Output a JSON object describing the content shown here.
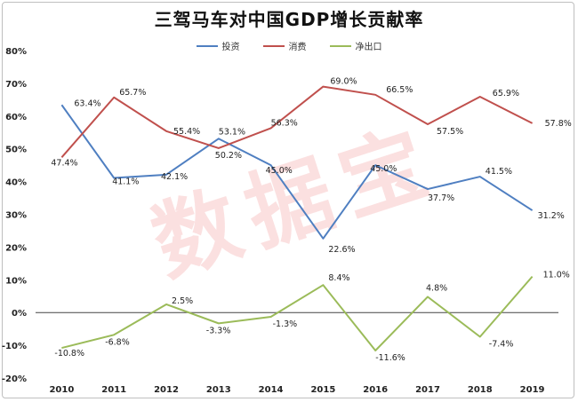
{
  "title": "三驾马车对中国GDP增长贡献率",
  "watermark": "数据宝",
  "chart_data": {
    "type": "line",
    "title": "三驾马车对中国GDP增长贡献率",
    "categories": [
      "2010",
      "2011",
      "2012",
      "2013",
      "2014",
      "2015",
      "2016",
      "2017",
      "2018",
      "2019"
    ],
    "ylim": [
      -20,
      80
    ],
    "yticks": [
      -20,
      -10,
      0,
      10,
      20,
      30,
      40,
      50,
      60,
      70,
      80
    ],
    "ytick_labels": [
      "-20%",
      "-10%",
      "0%",
      "10%",
      "20%",
      "30%",
      "40%",
      "50%",
      "60%",
      "70%",
      "80%"
    ],
    "grid": false,
    "legend_position": "top-center",
    "series": [
      {
        "name": "投资",
        "color": "#4f7fc1",
        "values": [
          63.4,
          41.1,
          42.1,
          53.1,
          45.0,
          22.6,
          45.0,
          37.7,
          41.5,
          31.2
        ],
        "labels": [
          "63.4%",
          "41.1%",
          "42.1%",
          "53.1%",
          "45.0%",
          "22.6%",
          "45.0%",
          "37.7%",
          "41.5%",
          "31.2%"
        ]
      },
      {
        "name": "消费",
        "color": "#c0504d",
        "values": [
          47.4,
          65.7,
          55.4,
          50.2,
          56.3,
          69.0,
          66.5,
          57.5,
          65.9,
          57.8
        ],
        "labels": [
          "47.4%",
          "65.7%",
          "55.4%",
          "50.2%",
          "56.3%",
          "69.0%",
          "66.5%",
          "57.5%",
          "65.9%",
          "57.8%"
        ]
      },
      {
        "name": "净出口",
        "color": "#9bbb59",
        "values": [
          -10.8,
          -6.8,
          2.5,
          -3.3,
          -1.3,
          8.4,
          -11.6,
          4.8,
          -7.4,
          11.0
        ],
        "labels": [
          "-10.8%",
          "-6.8%",
          "2.5%",
          "-3.3%",
          "-1.3%",
          "8.4%",
          "-11.6%",
          "4.8%",
          "-7.4%",
          "11.0%"
        ]
      }
    ]
  }
}
